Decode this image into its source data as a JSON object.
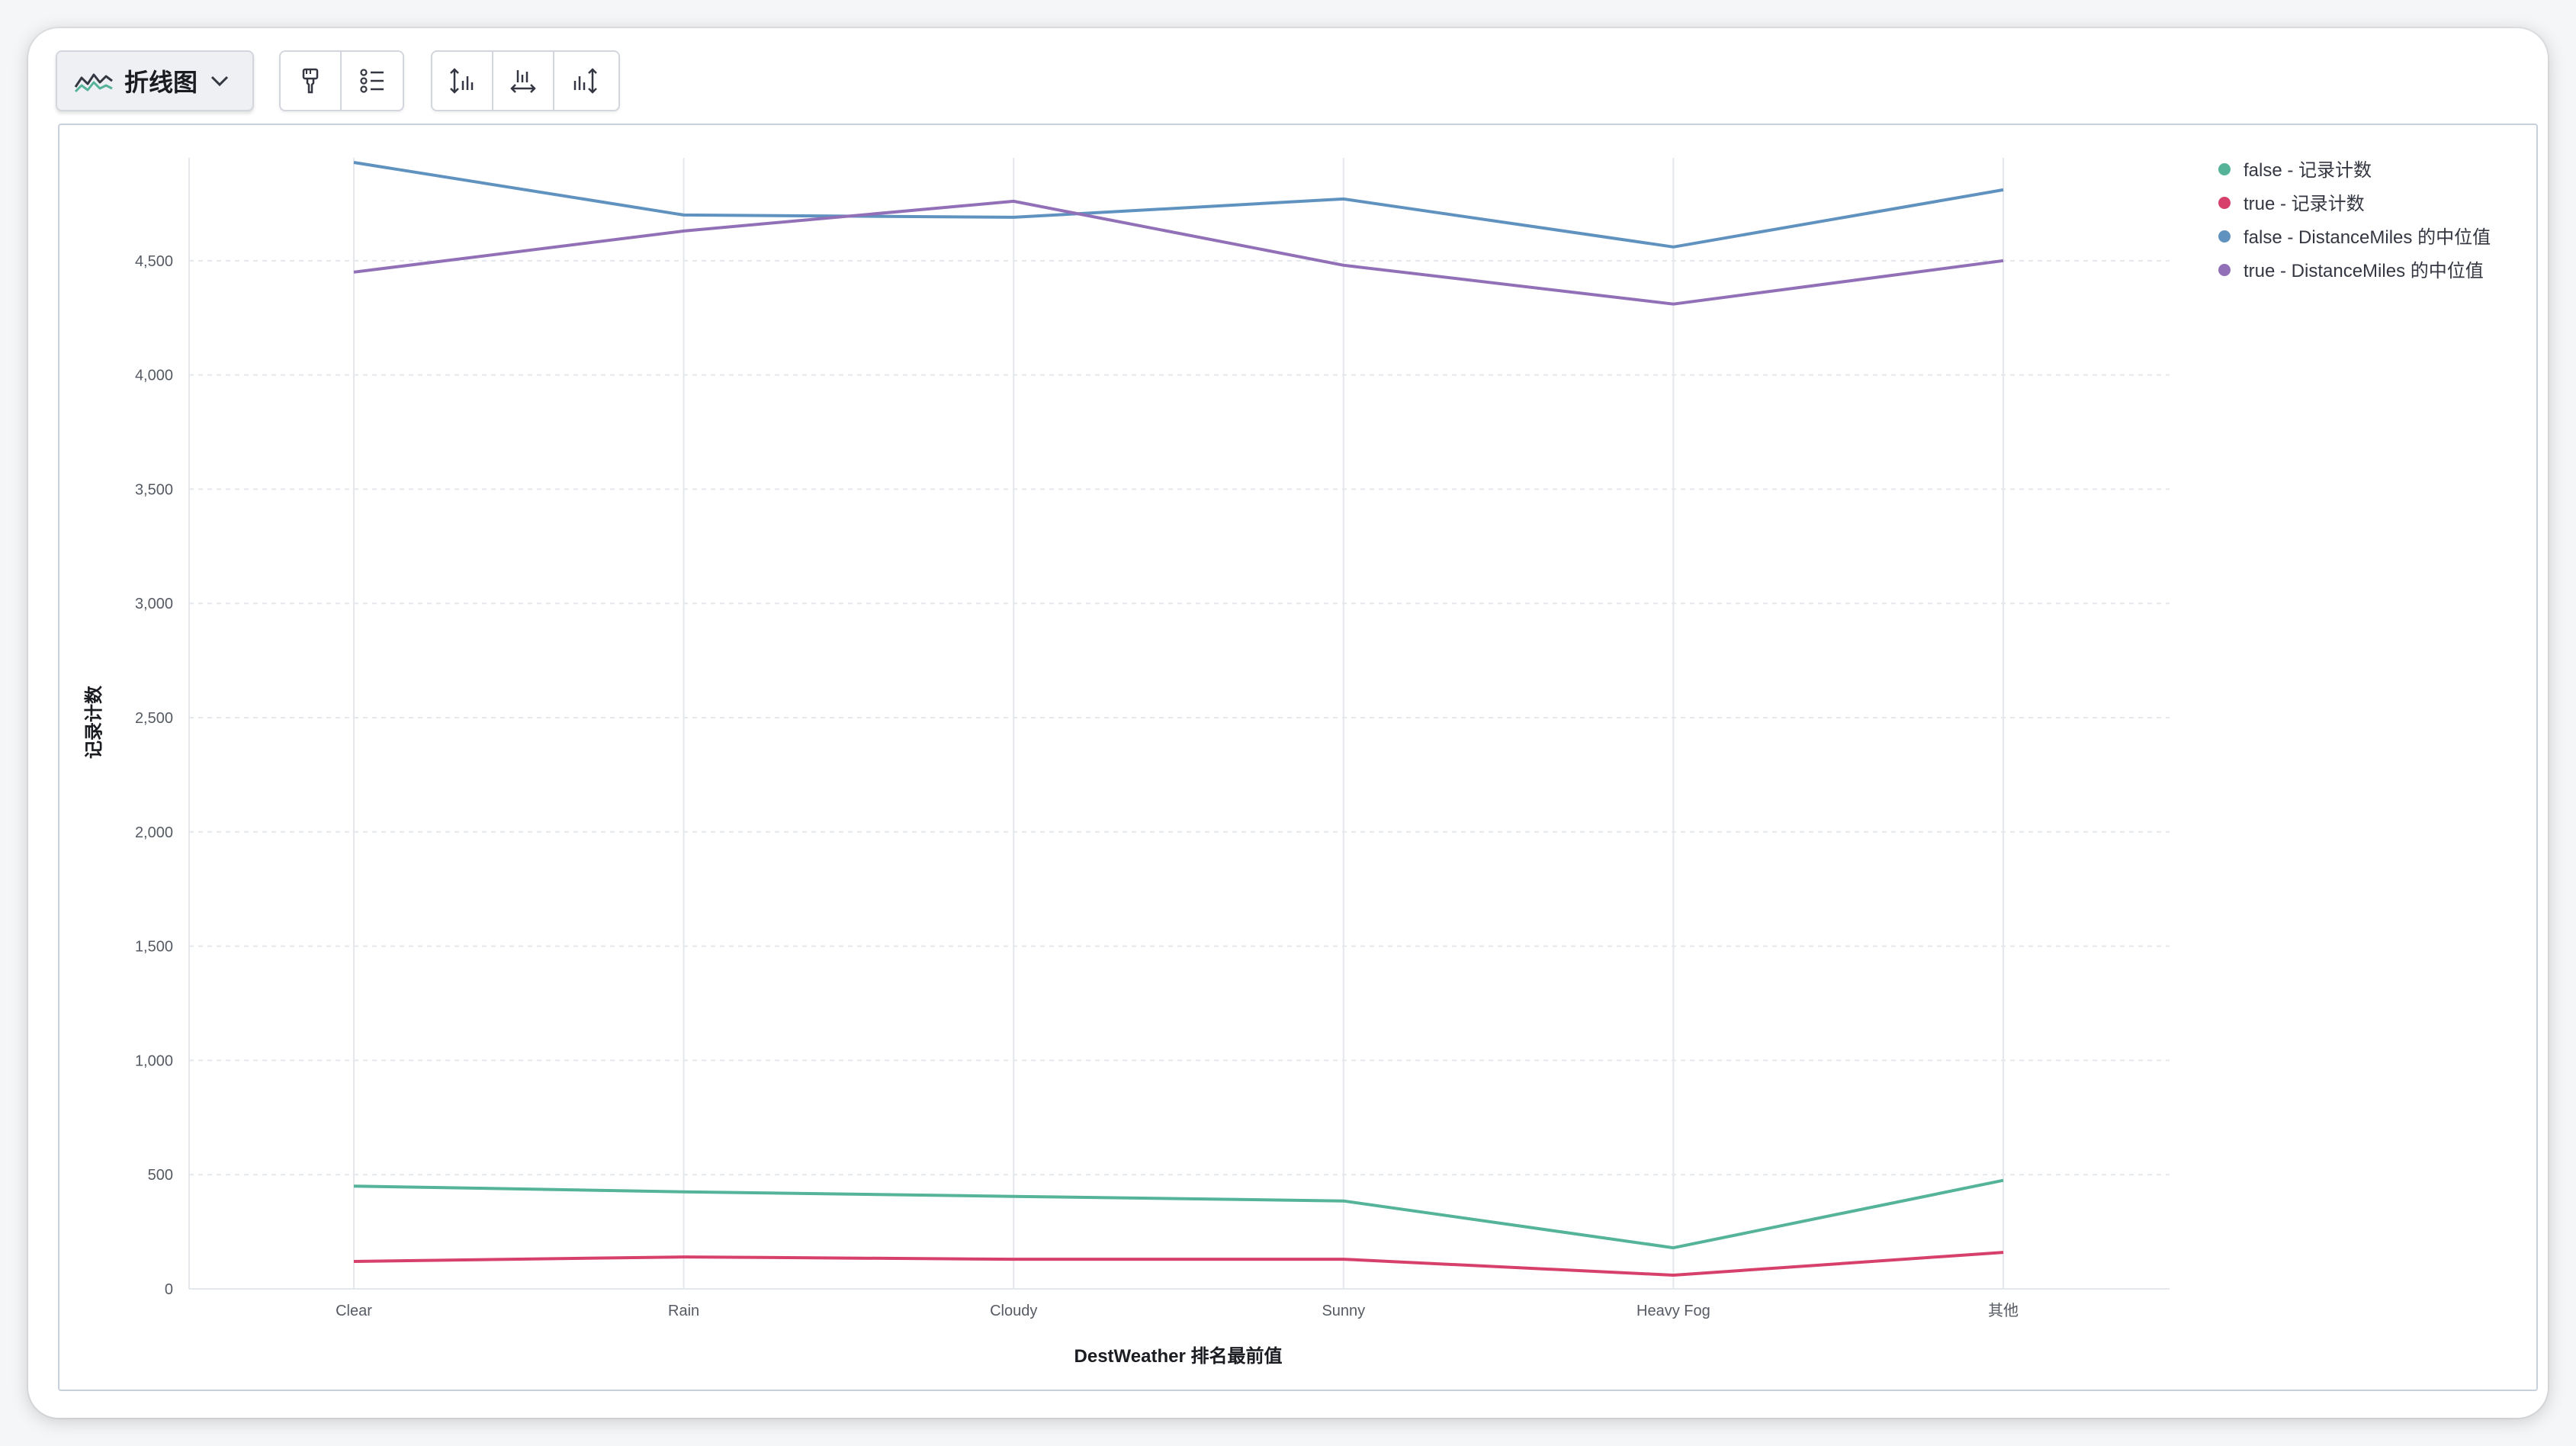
{
  "toolbar": {
    "chart_type_label": "折线图",
    "icons": [
      "line-chart-icon",
      "chevron-down-icon",
      "paint-brush-icon",
      "legend-list-icon",
      "left-axis-icon",
      "bottom-axis-icon",
      "right-axis-icon"
    ]
  },
  "colors": {
    "false_count": "#54b399",
    "true_count": "#d6406b",
    "false_median": "#6092c0",
    "true_median": "#9170b8"
  },
  "chart_data": {
    "type": "line",
    "title": "",
    "xlabel": "DestWeather 排名最前值",
    "ylabel": "记录计数",
    "categories": [
      "Clear",
      "Rain",
      "Cloudy",
      "Sunny",
      "Heavy Fog",
      "其他"
    ],
    "ylim": [
      0,
      4950
    ],
    "yticks": [
      0,
      500,
      1000,
      1500,
      2000,
      2500,
      3000,
      3500,
      4000,
      4500
    ],
    "ytick_labels": [
      "0",
      "500",
      "1,000",
      "1,500",
      "2,000",
      "2,500",
      "3,000",
      "3,500",
      "4,000",
      "4,500"
    ],
    "grid": true,
    "legend_position": "top-right",
    "series": [
      {
        "name": "false - 记录计数",
        "color": "#54b399",
        "values": [
          450,
          425,
          405,
          385,
          180,
          475
        ]
      },
      {
        "name": "true - 记录计数",
        "color": "#d6406b",
        "values": [
          120,
          140,
          130,
          130,
          60,
          160
        ]
      },
      {
        "name": "false - DistanceMiles 的中位值",
        "color": "#6092c0",
        "values": [
          4930,
          4700,
          4690,
          4770,
          4560,
          4810
        ]
      },
      {
        "name": "true - DistanceMiles 的中位值",
        "color": "#9170b8",
        "values": [
          4450,
          4630,
          4760,
          4480,
          4310,
          4500
        ]
      }
    ]
  }
}
